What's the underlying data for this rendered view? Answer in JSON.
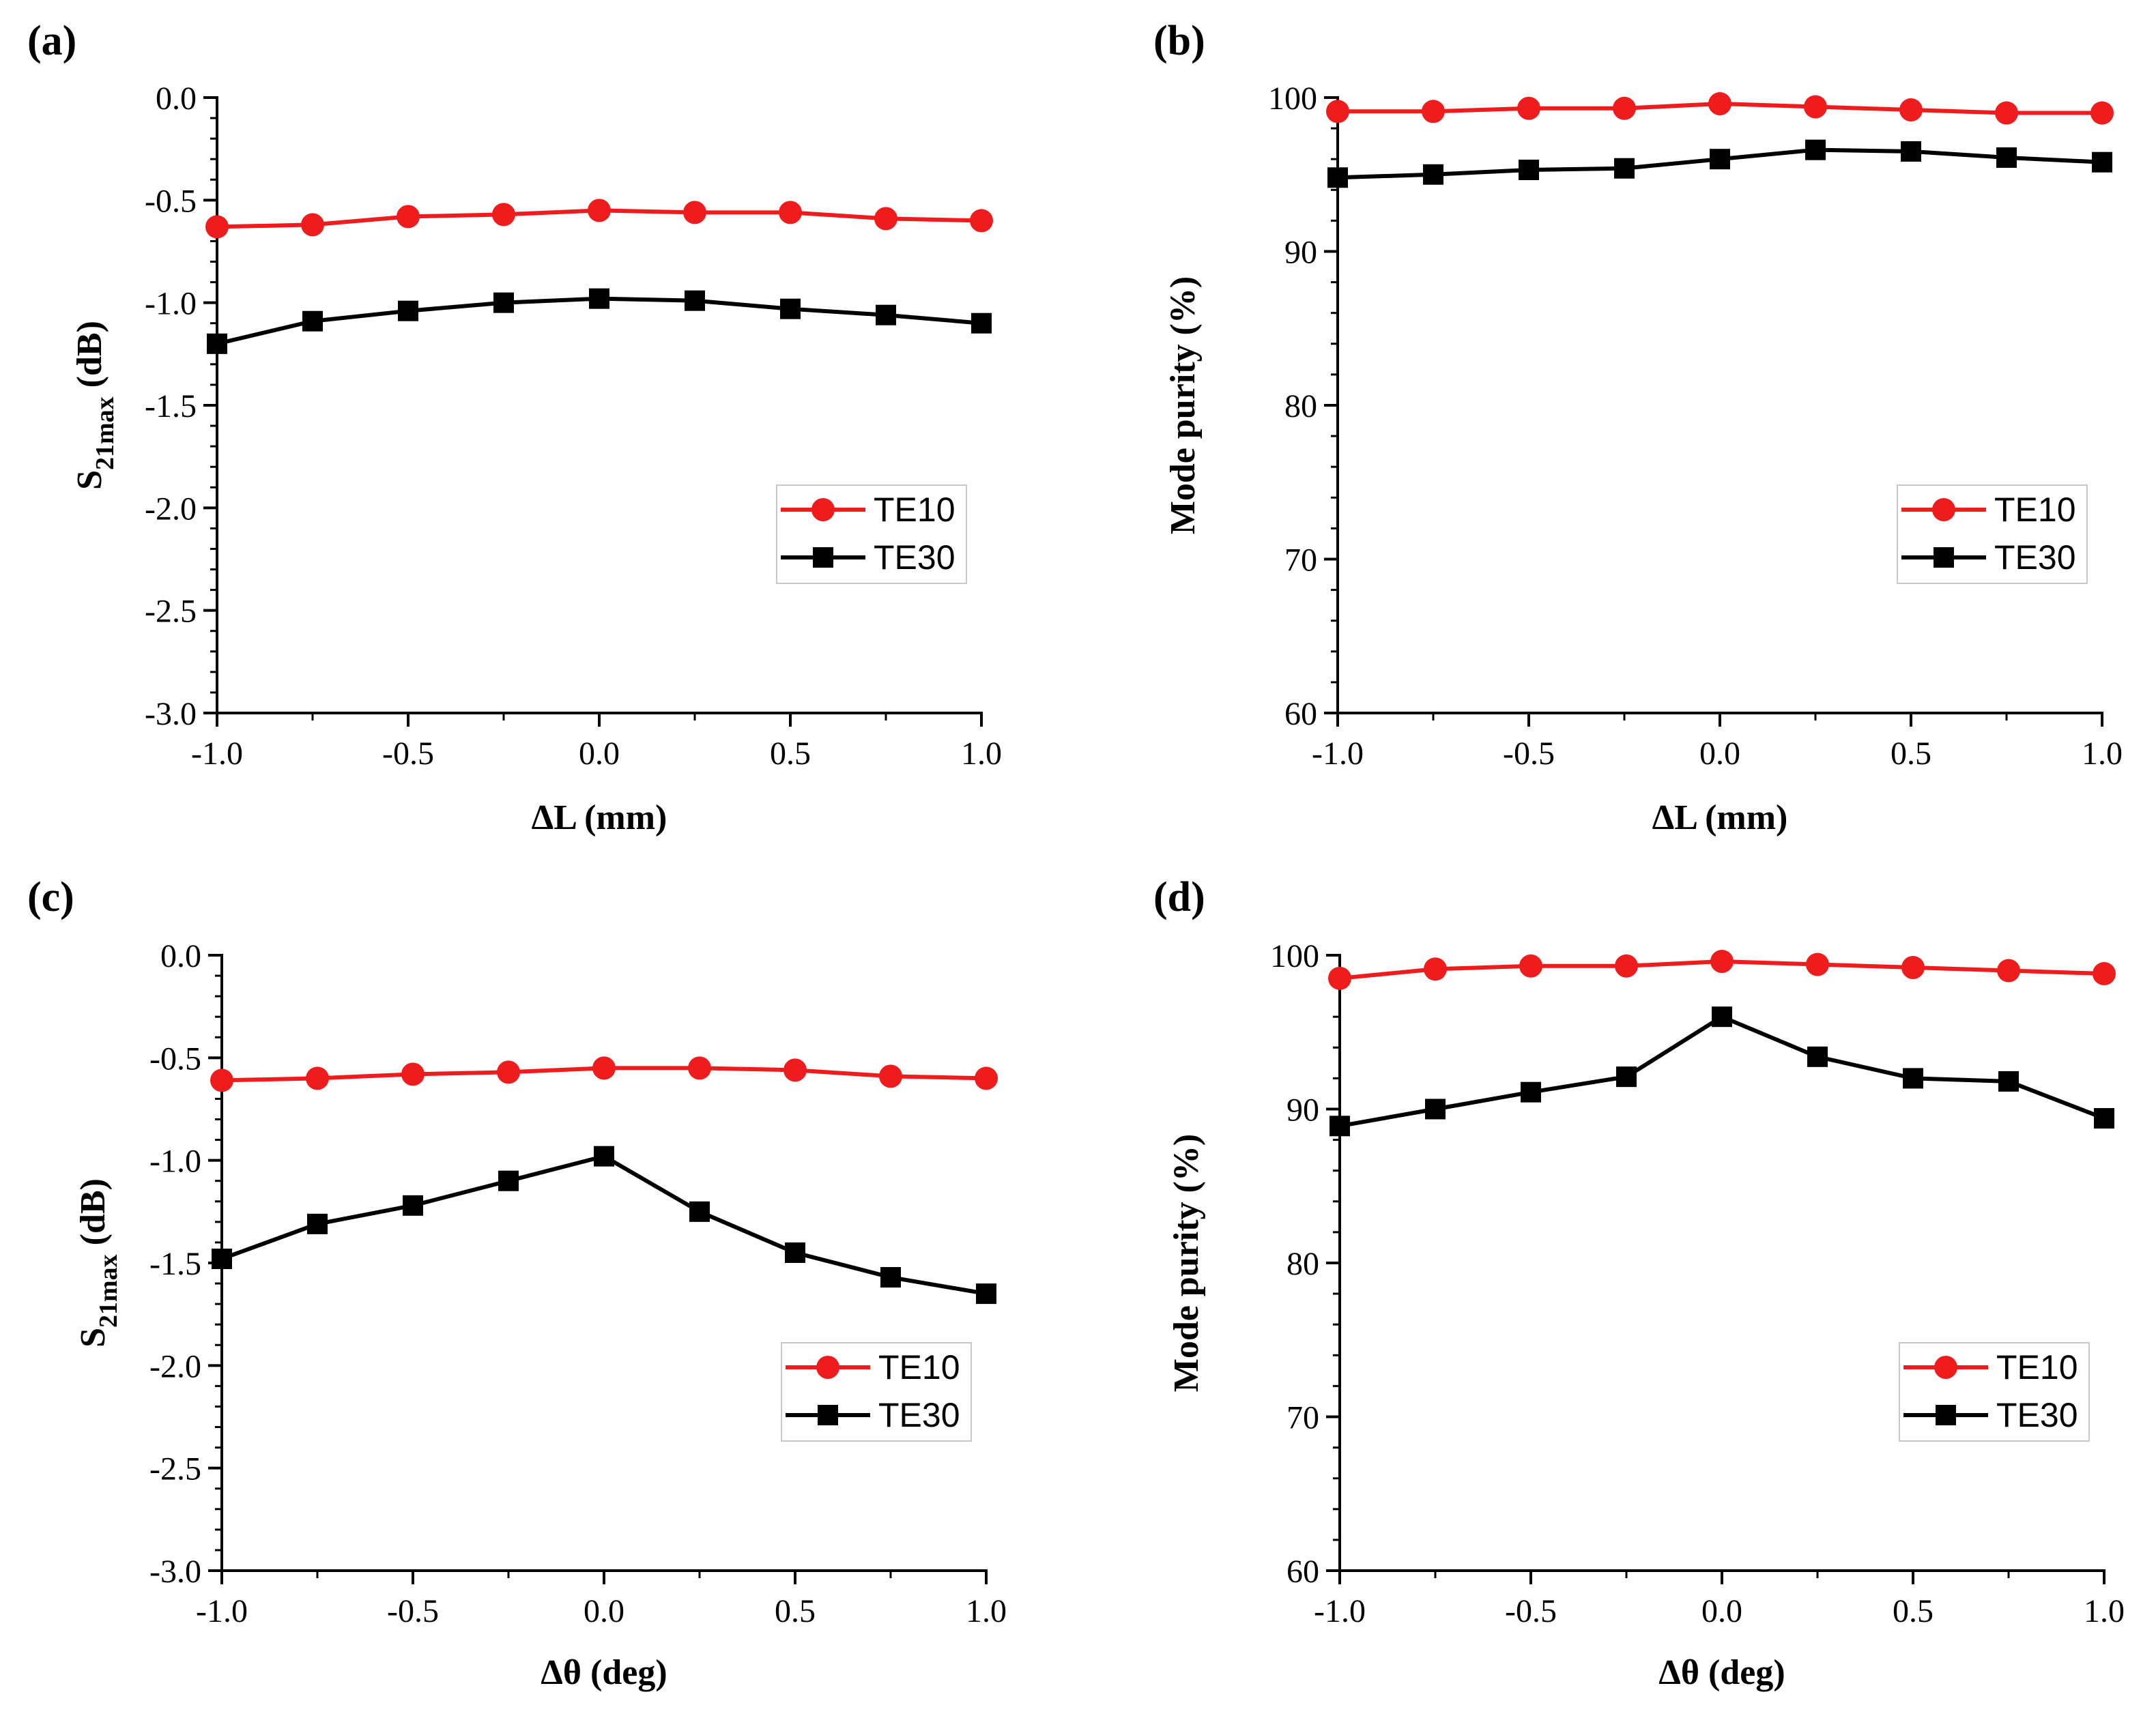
{
  "figure": {
    "background": "#ffffff"
  },
  "series_style": {
    "TE10": {
      "color": "#ee1c1c",
      "marker": "circle"
    },
    "TE30": {
      "color": "#000000",
      "marker": "square"
    }
  },
  "chart_data": [
    {
      "panel": "(a)",
      "type": "line",
      "x": [
        -1.0,
        -0.75,
        -0.5,
        -0.25,
        0.0,
        0.25,
        0.5,
        0.75,
        1.0
      ],
      "series": [
        {
          "name": "TE10",
          "values": [
            -0.63,
            -0.62,
            -0.58,
            -0.57,
            -0.55,
            -0.56,
            -0.56,
            -0.59,
            -0.6
          ]
        },
        {
          "name": "TE30",
          "values": [
            -1.2,
            -1.09,
            -1.04,
            -1.0,
            -0.98,
            -0.99,
            -1.03,
            -1.06,
            -1.1
          ]
        }
      ],
      "xlabel": "ΔL (mm)",
      "ylabel_main": "S",
      "ylabel_sub": "21max",
      "ylabel_unit": " (dB)",
      "xlim": [
        -1.0,
        1.0
      ],
      "ylim": [
        -3.0,
        0.0
      ],
      "xticks": [
        -1.0,
        -0.5,
        0.0,
        0.5,
        1.0
      ],
      "xtick_labels": [
        "-1.0",
        "-0.5",
        "0.0",
        "0.5",
        "1.0"
      ],
      "yticks": [
        0.0,
        -0.5,
        -1.0,
        -1.5,
        -2.0,
        -2.5,
        -3.0
      ],
      "ytick_labels": [
        "0.0",
        "-0.5",
        "-1.0",
        "-1.5",
        "-2.0",
        "-2.5",
        "-3.0"
      ],
      "legend": [
        "TE10",
        "TE30"
      ],
      "legend_position": "lower-right",
      "grid": false
    },
    {
      "panel": "(b)",
      "type": "line",
      "x": [
        -1.0,
        -0.75,
        -0.5,
        -0.25,
        0.0,
        0.25,
        0.5,
        0.75,
        1.0
      ],
      "series": [
        {
          "name": "TE10",
          "values": [
            99.1,
            99.1,
            99.3,
            99.3,
            99.6,
            99.4,
            99.2,
            99.0,
            99.0
          ]
        },
        {
          "name": "TE30",
          "values": [
            94.8,
            95.0,
            95.3,
            95.4,
            96.0,
            96.6,
            96.5,
            96.1,
            95.8
          ]
        }
      ],
      "xlabel": "ΔL (mm)",
      "ylabel_main": "Mode purity (%)",
      "ylabel_sub": "",
      "ylabel_unit": "",
      "xlim": [
        -1.0,
        1.0
      ],
      "ylim": [
        60,
        100
      ],
      "xticks": [
        -1.0,
        -0.5,
        0.0,
        0.5,
        1.0
      ],
      "xtick_labels": [
        "-1.0",
        "-0.5",
        "0.0",
        "0.5",
        "1.0"
      ],
      "yticks": [
        100,
        90,
        80,
        70,
        60
      ],
      "ytick_labels": [
        "100",
        "90",
        "80",
        "70",
        "60"
      ],
      "legend": [
        "TE10",
        "TE30"
      ],
      "legend_position": "lower-right",
      "grid": false
    },
    {
      "panel": "(c)",
      "type": "line",
      "x": [
        -1.0,
        -0.75,
        -0.5,
        -0.25,
        0.0,
        0.25,
        0.5,
        0.75,
        1.0
      ],
      "series": [
        {
          "name": "TE10",
          "values": [
            -0.61,
            -0.6,
            -0.58,
            -0.57,
            -0.55,
            -0.55,
            -0.56,
            -0.59,
            -0.6
          ]
        },
        {
          "name": "TE30",
          "values": [
            -1.48,
            -1.31,
            -1.22,
            -1.1,
            -0.98,
            -1.25,
            -1.45,
            -1.57,
            -1.65
          ]
        }
      ],
      "xlabel": "Δθ (deg)",
      "ylabel_main": "S",
      "ylabel_sub": "21max",
      "ylabel_unit": " (dB)",
      "xlim": [
        -1.0,
        1.0
      ],
      "ylim": [
        -3.0,
        0.0
      ],
      "xticks": [
        -1.0,
        -0.5,
        0.0,
        0.5,
        1.0
      ],
      "xtick_labels": [
        "-1.0",
        "-0.5",
        "0.0",
        "0.5",
        "1.0"
      ],
      "yticks": [
        0.0,
        -0.5,
        -1.0,
        -1.5,
        -2.0,
        -2.5,
        -3.0
      ],
      "ytick_labels": [
        "0.0",
        "-0.5",
        "-1.0",
        "-1.5",
        "-2.0",
        "-2.5",
        "-3.0"
      ],
      "legend": [
        "TE10",
        "TE30"
      ],
      "legend_position": "lower-right",
      "grid": false
    },
    {
      "panel": "(d)",
      "type": "line",
      "x": [
        -1.0,
        -0.75,
        -0.5,
        -0.25,
        0.0,
        0.25,
        0.5,
        0.75,
        1.0
      ],
      "series": [
        {
          "name": "TE10",
          "values": [
            98.5,
            99.1,
            99.3,
            99.3,
            99.6,
            99.4,
            99.2,
            99.0,
            98.8
          ]
        },
        {
          "name": "TE30",
          "values": [
            88.9,
            90.0,
            91.1,
            92.1,
            96.0,
            93.4,
            92.0,
            91.8,
            89.4
          ]
        }
      ],
      "xlabel": "Δθ (deg)",
      "ylabel_main": "Mode purity (%)",
      "ylabel_sub": "",
      "ylabel_unit": "",
      "xlim": [
        -1.0,
        1.0
      ],
      "ylim": [
        60,
        100
      ],
      "xticks": [
        -1.0,
        -0.5,
        0.0,
        0.5,
        1.0
      ],
      "xtick_labels": [
        "-1.0",
        "-0.5",
        "0.0",
        "0.5",
        "1.0"
      ],
      "yticks": [
        100,
        90,
        80,
        70,
        60
      ],
      "ytick_labels": [
        "100",
        "90",
        "80",
        "70",
        "60"
      ],
      "legend": [
        "TE10",
        "TE30"
      ],
      "legend_position": "lower-right",
      "grid": false
    }
  ]
}
